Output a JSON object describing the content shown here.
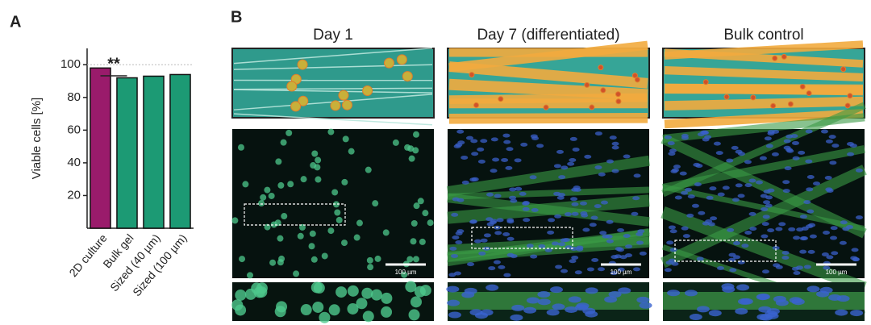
{
  "chart_data": {
    "type": "bar",
    "panel_label": "A",
    "y_label": "Viable cells [%]",
    "categories": [
      "2D culture",
      "Bulk gel",
      "Sized (40 µm)",
      "Sized (100 µm)"
    ],
    "values": [
      98,
      92,
      93,
      94
    ],
    "colors": [
      "#9a1b6b",
      "#1c9a74",
      "#1c9a74",
      "#1c9a74"
    ],
    "ylim": [
      0,
      110
    ],
    "yticks": [
      20,
      40,
      60,
      80,
      100
    ],
    "reference_line": 100,
    "annotation": "**"
  },
  "figure": {
    "panel_label": "B",
    "columns": [
      "Day 1",
      "Day 7 (differentiated)",
      "Bulk control"
    ],
    "scale_bars": [
      "100 µm",
      "100 µm",
      "100 µm"
    ]
  }
}
